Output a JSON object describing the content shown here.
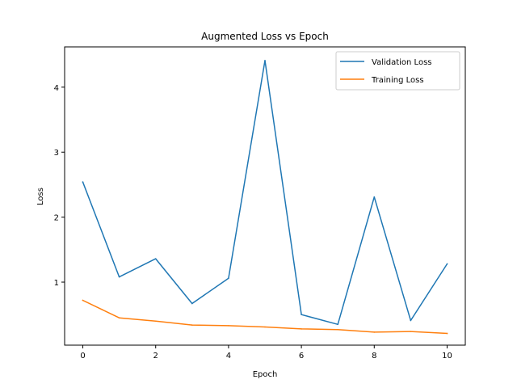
{
  "chart_data": {
    "type": "line",
    "title": "Augmented Loss vs Epoch",
    "xlabel": "Epoch",
    "ylabel": "Loss",
    "x": [
      0,
      1,
      2,
      3,
      4,
      5,
      6,
      7,
      8,
      9,
      10
    ],
    "xlim": [
      -0.5,
      10.5
    ],
    "ylim": [
      0.03,
      4.62
    ],
    "xticks": [
      "0",
      "2",
      "4",
      "6",
      "8",
      "10"
    ],
    "yticks": [
      "1",
      "2",
      "3",
      "4"
    ],
    "grid": false,
    "legend_position": "top-right",
    "series": [
      {
        "name": "Validation Loss",
        "color": "#1f77b4",
        "values": [
          2.54,
          1.08,
          1.36,
          0.67,
          1.06,
          4.41,
          0.5,
          0.35,
          2.31,
          0.41,
          1.28
        ]
      },
      {
        "name": "Training Loss",
        "color": "#ff7f0e",
        "values": [
          0.72,
          0.45,
          0.4,
          0.34,
          0.33,
          0.31,
          0.28,
          0.27,
          0.23,
          0.24,
          0.21
        ]
      }
    ]
  }
}
